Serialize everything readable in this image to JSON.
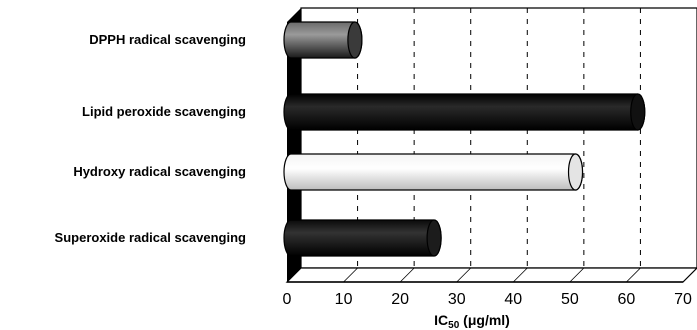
{
  "chart_data": {
    "type": "bar",
    "orientation": "horizontal",
    "style": "3d-cylinder",
    "categories": [
      "DPPH radical scavenging",
      "Lipid peroxide scavenging",
      "Hydroxy radical scavenging",
      "Superoxide radical scavenging"
    ],
    "values": [
      12,
      62,
      51,
      26
    ],
    "bar_colors": [
      "#3a3a3a",
      "#111111",
      "#e4e4e4",
      "#1c1c1c"
    ],
    "xlabel": "IC50 (μg/ml)",
    "xlabel_main": "IC",
    "xlabel_sub": "50",
    "xlabel_rest": " (μg/ml)",
    "xlim": [
      0,
      70
    ],
    "xticks": [
      "0",
      "10",
      "20",
      "30",
      "40",
      "50",
      "60",
      "70"
    ],
    "grid": "vertical-dashed"
  }
}
